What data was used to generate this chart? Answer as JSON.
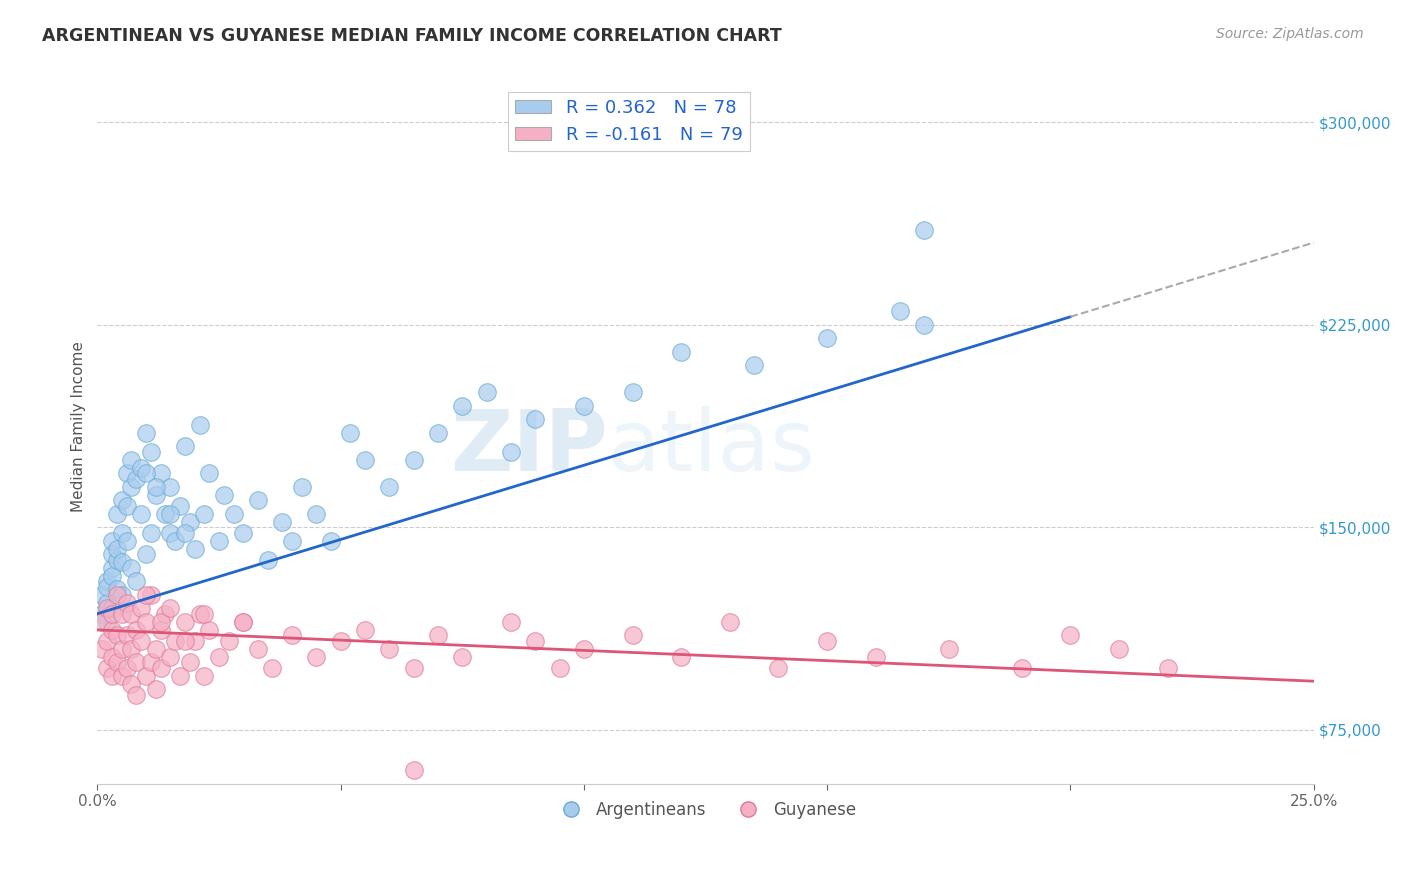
{
  "title": "ARGENTINEAN VS GUYANESE MEDIAN FAMILY INCOME CORRELATION CHART",
  "source_text": "Source: ZipAtlas.com",
  "ylabel": "Median Family Income",
  "xlim": [
    0.0,
    0.25
  ],
  "ylim": [
    55000,
    320000
  ],
  "yticks": [
    75000,
    150000,
    225000,
    300000
  ],
  "xtick_positions": [
    0.0,
    0.05,
    0.1,
    0.15,
    0.2,
    0.25
  ],
  "xtick_labels": [
    "0.0%",
    "",
    "",
    "",
    "",
    "25.0%"
  ],
  "argentinean_color": "#a8ccee",
  "argentinean_edge": "#6aaad4",
  "guyanese_color": "#f5b0c5",
  "guyanese_edge": "#e07898",
  "argentinean_trend_color": "#2266cc",
  "guyanese_trend_color": "#dd5577",
  "dashed_extension_color": "#aaaaaa",
  "legend_r1": "R = 0.362   N = 78",
  "legend_r2": "R = -0.161   N = 79",
  "legend_label1": "Argentineans",
  "legend_label2": "Guyanese",
  "watermark_zip": "ZIP",
  "watermark_atlas": "atlas",
  "arg_trend_x0": 0.0,
  "arg_trend_y0": 118000,
  "arg_trend_x1": 0.2,
  "arg_trend_y1": 228000,
  "guy_trend_x0": 0.0,
  "guy_trend_y0": 112000,
  "guy_trend_x1": 0.25,
  "guy_trend_y1": 93000,
  "argentinean_x": [
    0.001,
    0.001,
    0.002,
    0.002,
    0.002,
    0.002,
    0.003,
    0.003,
    0.003,
    0.003,
    0.003,
    0.004,
    0.004,
    0.004,
    0.004,
    0.005,
    0.005,
    0.005,
    0.005,
    0.006,
    0.006,
    0.006,
    0.007,
    0.007,
    0.007,
    0.008,
    0.008,
    0.009,
    0.009,
    0.01,
    0.01,
    0.011,
    0.011,
    0.012,
    0.013,
    0.014,
    0.015,
    0.015,
    0.016,
    0.017,
    0.018,
    0.019,
    0.02,
    0.021,
    0.022,
    0.023,
    0.025,
    0.026,
    0.028,
    0.03,
    0.033,
    0.035,
    0.038,
    0.04,
    0.042,
    0.045,
    0.048,
    0.052,
    0.055,
    0.06,
    0.065,
    0.07,
    0.075,
    0.08,
    0.085,
    0.09,
    0.1,
    0.11,
    0.12,
    0.135,
    0.15,
    0.165,
    0.17,
    0.01,
    0.012,
    0.015,
    0.018,
    0.17
  ],
  "argentinean_y": [
    125000,
    118000,
    130000,
    122000,
    115000,
    128000,
    135000,
    140000,
    120000,
    145000,
    132000,
    138000,
    127000,
    142000,
    155000,
    148000,
    137000,
    160000,
    125000,
    170000,
    145000,
    158000,
    165000,
    135000,
    175000,
    168000,
    130000,
    172000,
    155000,
    140000,
    185000,
    148000,
    178000,
    162000,
    170000,
    155000,
    165000,
    148000,
    145000,
    158000,
    180000,
    152000,
    142000,
    188000,
    155000,
    170000,
    145000,
    162000,
    155000,
    148000,
    160000,
    138000,
    152000,
    145000,
    165000,
    155000,
    145000,
    185000,
    175000,
    165000,
    175000,
    185000,
    195000,
    200000,
    178000,
    190000,
    195000,
    200000,
    215000,
    210000,
    220000,
    230000,
    225000,
    170000,
    165000,
    155000,
    148000,
    260000
  ],
  "guyanese_x": [
    0.001,
    0.001,
    0.002,
    0.002,
    0.002,
    0.003,
    0.003,
    0.003,
    0.003,
    0.004,
    0.004,
    0.004,
    0.005,
    0.005,
    0.005,
    0.006,
    0.006,
    0.006,
    0.007,
    0.007,
    0.007,
    0.008,
    0.008,
    0.008,
    0.009,
    0.009,
    0.01,
    0.01,
    0.011,
    0.011,
    0.012,
    0.012,
    0.013,
    0.013,
    0.014,
    0.015,
    0.016,
    0.017,
    0.018,
    0.019,
    0.02,
    0.021,
    0.022,
    0.023,
    0.025,
    0.027,
    0.03,
    0.033,
    0.036,
    0.04,
    0.045,
    0.05,
    0.055,
    0.06,
    0.065,
    0.07,
    0.075,
    0.085,
    0.09,
    0.095,
    0.1,
    0.11,
    0.12,
    0.13,
    0.14,
    0.15,
    0.16,
    0.175,
    0.19,
    0.2,
    0.21,
    0.22,
    0.01,
    0.013,
    0.015,
    0.018,
    0.022,
    0.03,
    0.065
  ],
  "guyanese_y": [
    115000,
    105000,
    120000,
    108000,
    98000,
    112000,
    102000,
    118000,
    95000,
    110000,
    100000,
    125000,
    105000,
    95000,
    118000,
    110000,
    98000,
    122000,
    105000,
    92000,
    118000,
    100000,
    112000,
    88000,
    108000,
    120000,
    95000,
    115000,
    100000,
    125000,
    105000,
    90000,
    112000,
    98000,
    118000,
    102000,
    108000,
    95000,
    115000,
    100000,
    108000,
    118000,
    95000,
    112000,
    102000,
    108000,
    115000,
    105000,
    98000,
    110000,
    102000,
    108000,
    112000,
    105000,
    98000,
    110000,
    102000,
    115000,
    108000,
    98000,
    105000,
    110000,
    102000,
    115000,
    98000,
    108000,
    102000,
    105000,
    98000,
    110000,
    105000,
    98000,
    125000,
    115000,
    120000,
    108000,
    118000,
    115000,
    60000
  ]
}
